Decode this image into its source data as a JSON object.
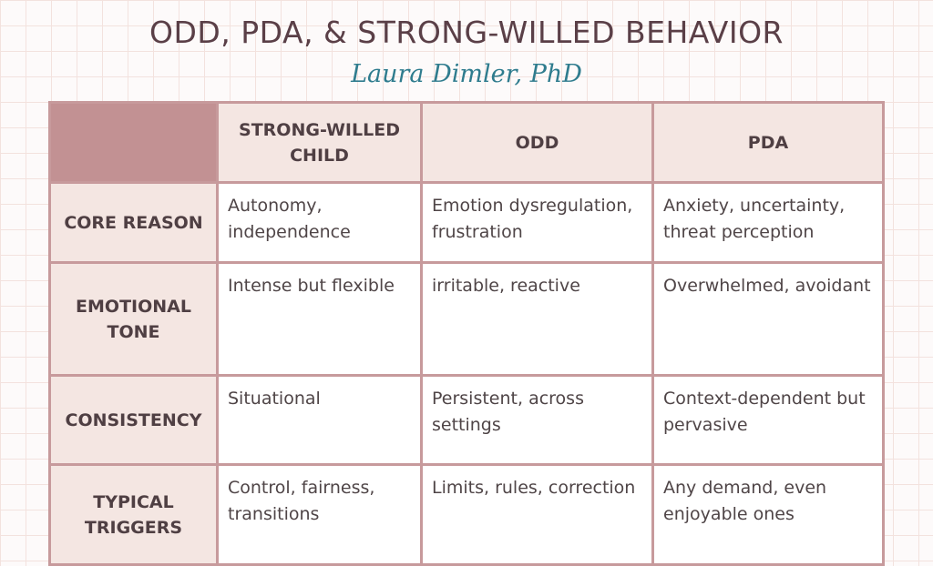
{
  "header": {
    "title": "ODD, PDA, & STRONG-WILLED BEHAVIOR",
    "author": "Laura Dimler, PhD"
  },
  "table": {
    "columns": [
      "",
      "STRONG-WILLED CHILD",
      "ODD",
      "PDA"
    ],
    "rows": [
      {
        "label": "CORE REASON",
        "cells": [
          "Autonomy, independence",
          "Emotion dysregulation, frustration",
          "Anxiety, uncertainty, threat perception"
        ]
      },
      {
        "label": "EMOTIONAL TONE",
        "cells": [
          "Intense but flexible",
          "irritable, reactive",
          "Overwhelmed, avoidant"
        ]
      },
      {
        "label": "CONSISTENCY",
        "cells": [
          "Situational",
          "Persistent, across settings",
          "Context-dependent but pervasive"
        ]
      },
      {
        "label": "TYPICAL TRIGGERS",
        "cells": [
          "Control, fairness, transitions",
          "Limits, rules, correction",
          "Any demand, even enjoyable ones"
        ]
      }
    ]
  },
  "colors": {
    "title": "#5a3f47",
    "author": "#2f7c8e",
    "header_fill": "#f4e6e2",
    "corner_fill": "#c29193",
    "border": "#c79a9c",
    "grid": "#f3e2de"
  }
}
